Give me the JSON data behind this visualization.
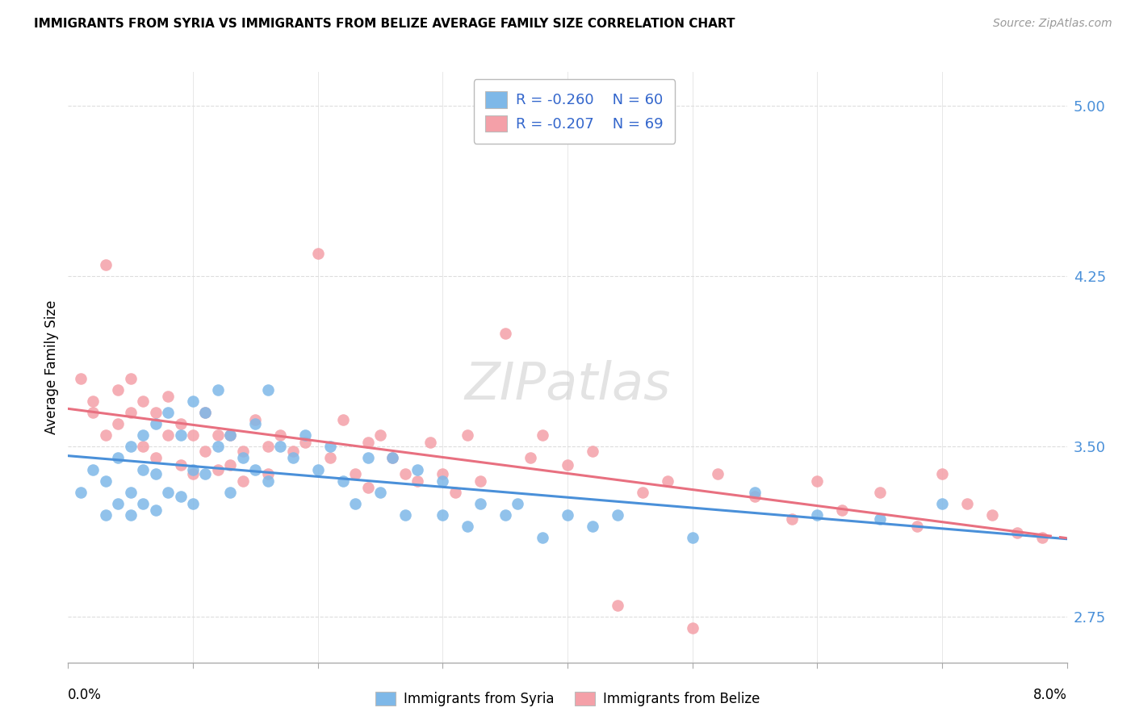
{
  "title": "IMMIGRANTS FROM SYRIA VS IMMIGRANTS FROM BELIZE AVERAGE FAMILY SIZE CORRELATION CHART",
  "source": "Source: ZipAtlas.com",
  "ylabel": "Average Family Size",
  "yticks": [
    2.75,
    3.5,
    4.25,
    5.0
  ],
  "ytick_labels": [
    "2.75",
    "3.50",
    "4.25",
    "5.00"
  ],
  "xlim": [
    0.0,
    0.08
  ],
  "ylim": [
    2.55,
    5.15
  ],
  "legend_syria_r": "R = -0.260",
  "legend_syria_n": "N = 60",
  "legend_belize_r": "R = -0.207",
  "legend_belize_n": "N = 69",
  "color_syria": "#7EB8E8",
  "color_belize": "#F4A0A8",
  "color_syria_line": "#4A90D9",
  "color_belize_line": "#E87080",
  "syria_x": [
    0.001,
    0.002,
    0.003,
    0.003,
    0.004,
    0.004,
    0.005,
    0.005,
    0.005,
    0.006,
    0.006,
    0.006,
    0.007,
    0.007,
    0.007,
    0.008,
    0.008,
    0.009,
    0.009,
    0.01,
    0.01,
    0.01,
    0.011,
    0.011,
    0.012,
    0.012,
    0.013,
    0.013,
    0.014,
    0.015,
    0.015,
    0.016,
    0.016,
    0.017,
    0.018,
    0.019,
    0.02,
    0.021,
    0.022,
    0.023,
    0.024,
    0.025,
    0.026,
    0.027,
    0.028,
    0.03,
    0.03,
    0.032,
    0.033,
    0.035,
    0.036,
    0.038,
    0.04,
    0.042,
    0.044,
    0.05,
    0.055,
    0.06,
    0.065,
    0.07
  ],
  "syria_y": [
    3.3,
    3.4,
    3.35,
    3.2,
    3.45,
    3.25,
    3.5,
    3.3,
    3.2,
    3.55,
    3.4,
    3.25,
    3.6,
    3.38,
    3.22,
    3.65,
    3.3,
    3.55,
    3.28,
    3.7,
    3.4,
    3.25,
    3.65,
    3.38,
    3.75,
    3.5,
    3.55,
    3.3,
    3.45,
    3.6,
    3.4,
    3.75,
    3.35,
    3.5,
    3.45,
    3.55,
    3.4,
    3.5,
    3.35,
    3.25,
    3.45,
    3.3,
    3.45,
    3.2,
    3.4,
    3.35,
    3.2,
    3.15,
    3.25,
    3.2,
    3.25,
    3.1,
    3.2,
    3.15,
    3.2,
    3.1,
    3.3,
    3.2,
    3.18,
    3.25
  ],
  "belize_x": [
    0.001,
    0.002,
    0.002,
    0.003,
    0.003,
    0.004,
    0.004,
    0.005,
    0.005,
    0.006,
    0.006,
    0.007,
    0.007,
    0.008,
    0.008,
    0.009,
    0.009,
    0.01,
    0.01,
    0.011,
    0.011,
    0.012,
    0.012,
    0.013,
    0.013,
    0.014,
    0.014,
    0.015,
    0.016,
    0.016,
    0.017,
    0.018,
    0.019,
    0.02,
    0.021,
    0.022,
    0.023,
    0.024,
    0.024,
    0.025,
    0.026,
    0.027,
    0.028,
    0.029,
    0.03,
    0.031,
    0.032,
    0.033,
    0.035,
    0.037,
    0.038,
    0.04,
    0.042,
    0.044,
    0.046,
    0.048,
    0.05,
    0.052,
    0.055,
    0.058,
    0.06,
    0.062,
    0.065,
    0.068,
    0.07,
    0.072,
    0.074,
    0.076,
    0.078
  ],
  "belize_y": [
    3.8,
    3.7,
    3.65,
    4.3,
    3.55,
    3.75,
    3.6,
    3.8,
    3.65,
    3.7,
    3.5,
    3.65,
    3.45,
    3.72,
    3.55,
    3.6,
    3.42,
    3.55,
    3.38,
    3.65,
    3.48,
    3.55,
    3.4,
    3.55,
    3.42,
    3.48,
    3.35,
    3.62,
    3.5,
    3.38,
    3.55,
    3.48,
    3.52,
    4.35,
    3.45,
    3.62,
    3.38,
    3.52,
    3.32,
    3.55,
    3.45,
    3.38,
    3.35,
    3.52,
    3.38,
    3.3,
    3.55,
    3.35,
    4.0,
    3.45,
    3.55,
    3.42,
    3.48,
    2.8,
    3.3,
    3.35,
    2.7,
    3.38,
    3.28,
    3.18,
    3.35,
    3.22,
    3.3,
    3.15,
    3.38,
    3.25,
    3.2,
    3.12,
    3.1
  ]
}
